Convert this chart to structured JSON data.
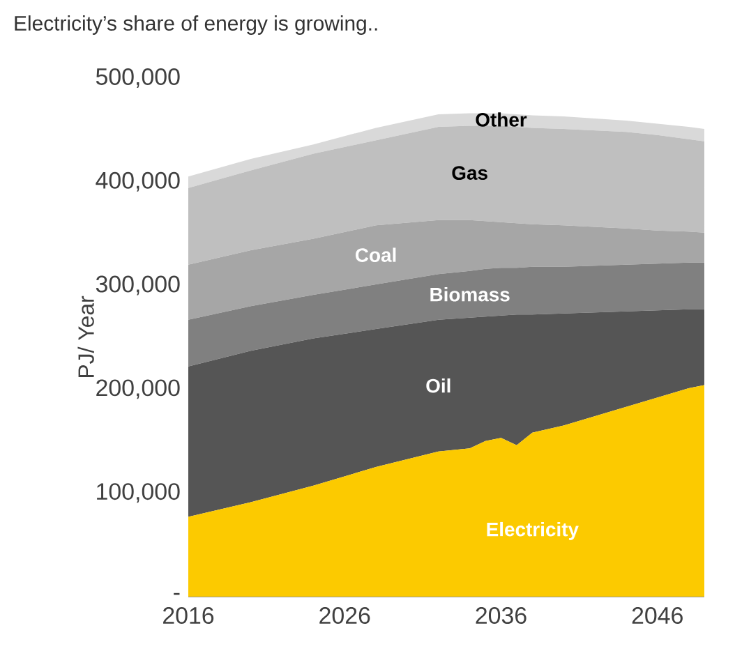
{
  "chart_data": {
    "type": "area",
    "stacked": true,
    "title": "Electricity’s share of energy is growing..",
    "ylabel": "PJ/ Year",
    "x": [
      2016,
      2020,
      2024,
      2028,
      2032,
      2034,
      2035,
      2036,
      2037,
      2038,
      2040,
      2044,
      2046,
      2048,
      2049
    ],
    "xlim": [
      2016,
      2049
    ],
    "xticks": [
      2016,
      2026,
      2036,
      2046
    ],
    "ylim": [
      0,
      500000
    ],
    "yticks": [
      {
        "value": 0,
        "label": "-"
      },
      {
        "value": 100000,
        "label": "100,000"
      },
      {
        "value": 200000,
        "label": "200,000"
      },
      {
        "value": 300000,
        "label": "300,000"
      },
      {
        "value": 400000,
        "label": "400,000"
      },
      {
        "value": 500000,
        "label": "500,000"
      }
    ],
    "series": [
      {
        "name": "Electricity",
        "color": "#fcca00",
        "values": [
          77000,
          91000,
          107000,
          125000,
          140000,
          143000,
          150000,
          153000,
          146000,
          158000,
          165000,
          183000,
          192000,
          201000,
          204000
        ]
      },
      {
        "name": "Oil",
        "color": "#555555",
        "values": [
          145000,
          146000,
          142000,
          133000,
          127000,
          126000,
          120000,
          118000,
          126000,
          114000,
          108000,
          92000,
          84000,
          76000,
          73000
        ]
      },
      {
        "name": "Biomass",
        "color": "#808080",
        "values": [
          45000,
          43000,
          42000,
          43000,
          44000,
          45000,
          46000,
          46000,
          45000,
          46000,
          45000,
          45000,
          45000,
          45000,
          45000
        ]
      },
      {
        "name": "Coal",
        "color": "#a6a6a6",
        "values": [
          53000,
          54000,
          54000,
          57000,
          52000,
          49000,
          46000,
          44000,
          43000,
          41000,
          40000,
          35000,
          32000,
          30000,
          29000
        ]
      },
      {
        "name": "Gas",
        "color": "#bfbfbf",
        "values": [
          74000,
          77000,
          82000,
          82000,
          90000,
          91000,
          92000,
          93000,
          93000,
          93000,
          93000,
          93000,
          92000,
          89000,
          88000
        ]
      },
      {
        "name": "Other",
        "color": "#d9d9d9",
        "values": [
          11000,
          11000,
          9000,
          12000,
          12000,
          12000,
          12000,
          12000,
          12000,
          12000,
          12000,
          11000,
          11000,
          12000,
          12000
        ]
      }
    ]
  }
}
